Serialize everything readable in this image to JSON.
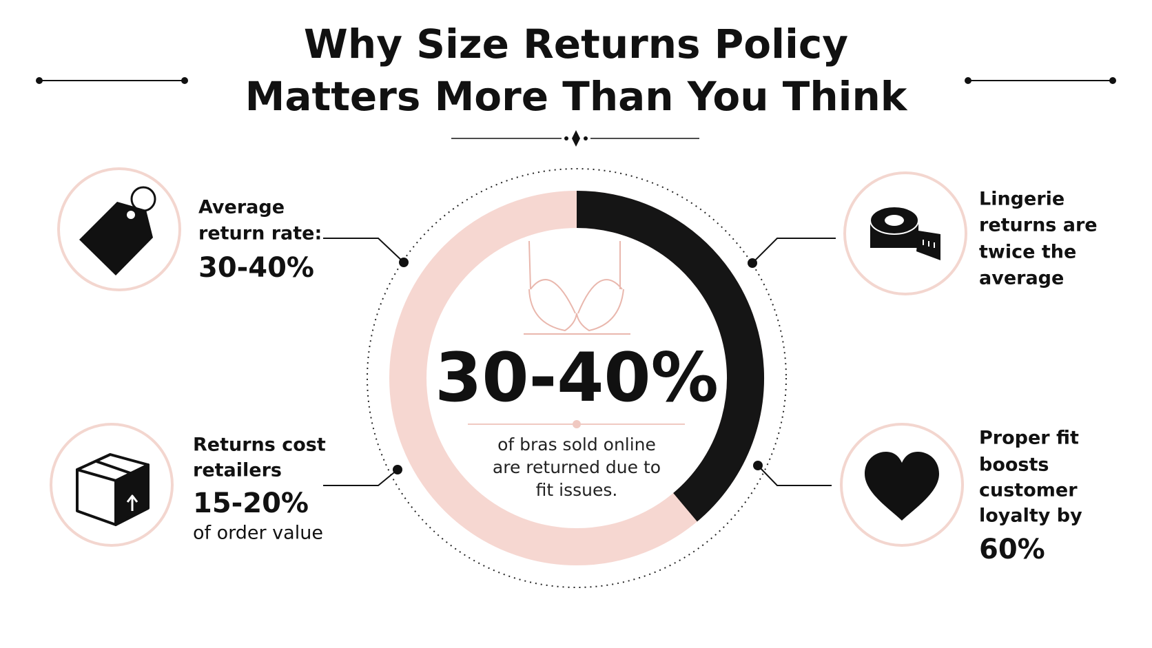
{
  "header": {
    "title_lines": [
      "Why Size Returns Policy",
      "Matters More Than You Think"
    ]
  },
  "center": {
    "stat": "30-40%",
    "caption_lines": [
      "of bras sold online",
      "are returned due to",
      "fit issues."
    ]
  },
  "facts": [
    {
      "lines": [
        "Average",
        "return rate:"
      ],
      "highlight": "30-40%"
    },
    {
      "lines": [
        "Returns cost",
        "retailers"
      ],
      "highlight": "15-20%",
      "after": "of order value"
    },
    {
      "lines": [
        "Lingerie",
        "returns are",
        "twice the",
        "average"
      ]
    },
    {
      "lines": [
        "Proper fit",
        "boosts",
        "customer",
        "loyalty by"
      ],
      "highlight": "60%"
    }
  ]
}
